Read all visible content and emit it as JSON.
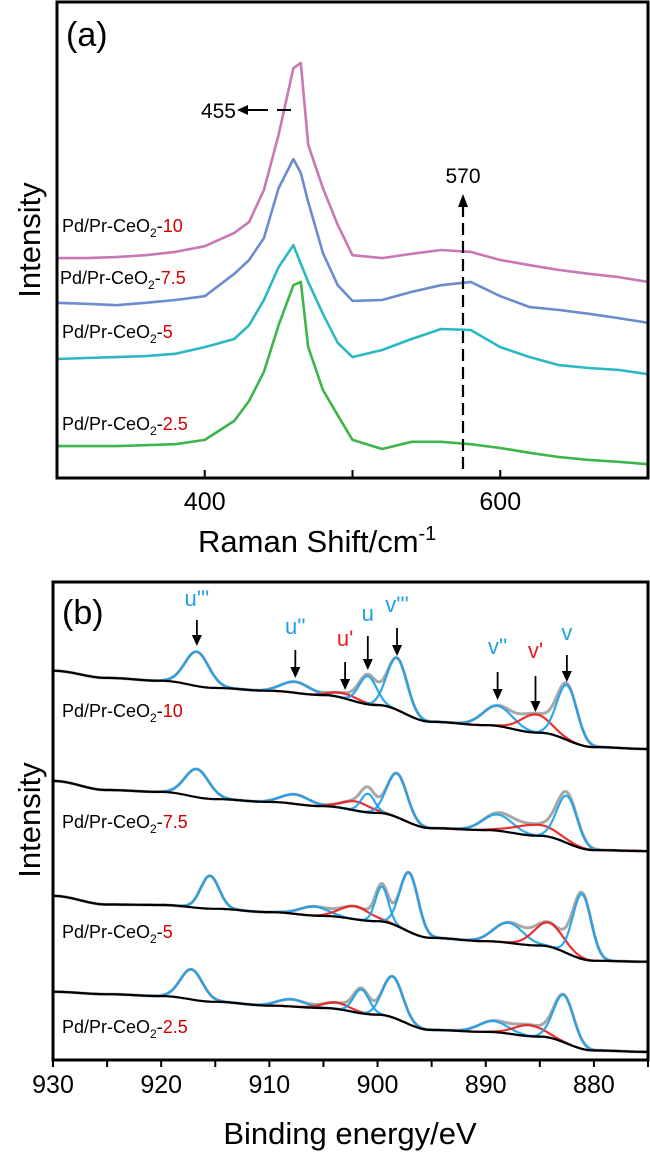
{
  "chart_data": [
    {
      "type": "line",
      "panel_label": "(a)",
      "xlabel": "Raman Shift/cm",
      "xlabel_superscript": "-1",
      "ylabel": "Intensity",
      "xlim": [
        300,
        700
      ],
      "xticks": [
        400,
        500,
        600
      ],
      "xtick_labels": [
        "400",
        "",
        "600"
      ],
      "grid": false,
      "x": [
        300,
        320,
        340,
        360,
        380,
        400,
        420,
        430,
        440,
        450,
        460,
        465,
        470,
        480,
        490,
        500,
        520,
        540,
        560,
        580,
        600,
        620,
        640,
        660,
        680,
        700
      ],
      "series": [
        {
          "name": "Pd/Pr-CeO2-10",
          "label_prefix": "Pd/Pr-CeO",
          "label_sub": "2",
          "label_dash": "-",
          "label_suffix": "10",
          "color": "#c878b4",
          "values": [
            46.2,
            46.2,
            46.4,
            46.8,
            47.5,
            48.7,
            51.5,
            53.8,
            60.5,
            72.1,
            86.1,
            87.2,
            70.0,
            60.9,
            53.2,
            46.8,
            46.2,
            47.1,
            47.9,
            47.5,
            45.8,
            44.7,
            43.7,
            42.9,
            42.2,
            41.2
          ]
        },
        {
          "name": "Pd/Pr-CeO2-7.5",
          "label_prefix": "Pd/Pr-CeO",
          "label_sub": "2",
          "label_dash": "-",
          "label_suffix": "7.5",
          "color": "#6c8ccb",
          "values": [
            36.8,
            36.6,
            36.3,
            36.8,
            37.4,
            38.2,
            42.9,
            45.8,
            50.4,
            60.9,
            67.0,
            64.1,
            58.0,
            47.3,
            40.5,
            37.2,
            37.4,
            39.1,
            40.5,
            41.2,
            38.2,
            35.9,
            35.3,
            34.5,
            33.6,
            32.6
          ]
        },
        {
          "name": "Pd/Pr-CeO2-5",
          "label_prefix": "Pd/Pr-CeO",
          "label_sub": "2",
          "label_dash": "-",
          "label_suffix": "5",
          "color": "#2cb8c2",
          "values": [
            25.0,
            25.2,
            25.4,
            25.6,
            26.1,
            27.5,
            29.2,
            32.1,
            37.4,
            44.3,
            48.9,
            45.0,
            41.2,
            34.5,
            28.4,
            25.4,
            26.9,
            29.2,
            31.3,
            31.1,
            27.5,
            25.4,
            23.7,
            23.1,
            22.7,
            21.8
          ]
        },
        {
          "name": "Pd/Pr-CeO2-2.5",
          "label_prefix": "Pd/Pr-CeO",
          "label_sub": "2",
          "label_dash": "-",
          "label_suffix": "2.5",
          "color": "#3db54a",
          "values": [
            6.7,
            6.7,
            6.7,
            6.9,
            7.1,
            8.0,
            12.0,
            16.2,
            22.3,
            32.1,
            40.5,
            41.2,
            27.5,
            18.5,
            13.2,
            8.0,
            6.1,
            7.6,
            7.6,
            7.1,
            6.3,
            5.3,
            4.4,
            3.8,
            3.4,
            2.9
          ]
        }
      ],
      "annotations": [
        {
          "text": "455",
          "x": 455,
          "arrow": "left"
        },
        {
          "text": "570",
          "x": 570,
          "arrow": "up",
          "line": "dashed"
        }
      ]
    },
    {
      "type": "line",
      "panel_label": "(b)",
      "xlabel": "Binding energy/eV",
      "ylabel": "Intensity",
      "xlim": [
        930,
        875
      ],
      "x_reversed": true,
      "xticks": [
        930,
        920,
        910,
        900,
        890,
        880
      ],
      "xtick_labels": [
        "930",
        "920",
        "910",
        "900",
        "890",
        "880"
      ],
      "grid": false,
      "colors": {
        "u_v_component": "#1e9fe8",
        "u_v_prime_component": "#e8201e",
        "envelope": "#a8a8a8",
        "background": "#000000"
      },
      "background_x": [
        930,
        925,
        920,
        915,
        910,
        905,
        900,
        895,
        890,
        885,
        880,
        875
      ],
      "peak_labels": [
        {
          "text": "u'''",
          "position": 916.7,
          "color": "#1e9fe8"
        },
        {
          "text": "u''",
          "position": 907.6,
          "color": "#1e9fe8"
        },
        {
          "text": "u'",
          "position": 903.0,
          "color": "#e8201e"
        },
        {
          "text": "u",
          "position": 900.9,
          "color": "#1e9fe8"
        },
        {
          "text": "v'''",
          "position": 898.2,
          "color": "#1e9fe8"
        },
        {
          "text": "v''",
          "position": 888.9,
          "color": "#1e9fe8"
        },
        {
          "text": "v'",
          "position": 885.4,
          "color": "#e8201e"
        },
        {
          "text": "v",
          "position": 882.5,
          "color": "#1e9fe8"
        }
      ],
      "spectra": [
        {
          "name": "Pd/Pr-CeO2-10",
          "label_prefix": "Pd/Pr-CeO",
          "label_sub": "2",
          "label_dash": "-",
          "label_suffix": "10",
          "background": [
            81.6,
            80.1,
            79.5,
            78.0,
            77.4,
            76.5,
            74.4,
            70.9,
            70.2,
            68.6,
            65.6,
            65.2
          ],
          "components": [
            {
              "label": "u'''",
              "position": 916.7,
              "height": 7.2,
              "fwhm": 2.6,
              "color": "#1e9fe8"
            },
            {
              "label": "u''",
              "position": 907.6,
              "height": 2.3,
              "fwhm": 3.0,
              "color": "#1e9fe8"
            },
            {
              "label": "u'",
              "position": 903.0,
              "height": 1.0,
              "fwhm": 3.0,
              "color": "#e8201e"
            },
            {
              "label": "u",
              "position": 900.9,
              "height": 5.9,
              "fwhm": 1.9,
              "color": "#1e9fe8"
            },
            {
              "label": "v'''",
              "position": 898.2,
              "height": 10.9,
              "fwhm": 2.2,
              "color": "#1e9fe8"
            },
            {
              "label": "v''",
              "position": 888.9,
              "height": 4.2,
              "fwhm": 3.2,
              "color": "#1e9fe8"
            },
            {
              "label": "v'",
              "position": 885.4,
              "height": 3.8,
              "fwhm": 3.2,
              "color": "#e8201e"
            },
            {
              "label": "v",
              "position": 882.5,
              "height": 11.5,
              "fwhm": 2.2,
              "color": "#1e9fe8"
            }
          ]
        },
        {
          "name": "Pd/Pr-CeO2-7.5",
          "label_prefix": "Pd/Pr-CeO",
          "label_sub": "2",
          "label_dash": "-",
          "label_suffix": "7.5",
          "background": [
            58.5,
            56.6,
            56.2,
            54.7,
            54.1,
            53.2,
            51.8,
            48.6,
            48.2,
            47.0,
            44.0,
            43.8
          ],
          "components": [
            {
              "label": "u'''",
              "position": 916.7,
              "height": 5.9,
              "fwhm": 2.6,
              "color": "#1e9fe8"
            },
            {
              "label": "u''",
              "position": 907.6,
              "height": 2.0,
              "fwhm": 3.0,
              "color": "#1e9fe8"
            },
            {
              "label": "u'",
              "position": 902.0,
              "height": 1.9,
              "fwhm": 3.0,
              "color": "#e8201e"
            },
            {
              "label": "u",
              "position": 900.9,
              "height": 3.9,
              "fwhm": 1.5,
              "color": "#1e9fe8"
            },
            {
              "label": "v'''",
              "position": 898.2,
              "height": 9.2,
              "fwhm": 2.2,
              "color": "#1e9fe8"
            },
            {
              "label": "v''",
              "position": 888.9,
              "height": 3.4,
              "fwhm": 3.2,
              "color": "#1e9fe8"
            },
            {
              "label": "v'",
              "position": 885.3,
              "height": 2.3,
              "fwhm": 4.5,
              "color": "#e8201e"
            },
            {
              "label": "v",
              "position": 882.5,
              "height": 9.9,
              "fwhm": 2.2,
              "color": "#1e9fe8"
            }
          ]
        },
        {
          "name": "Pd/Pr-CeO2-5",
          "label_prefix": "Pd/Pr-CeO",
          "label_sub": "2",
          "label_dash": "-",
          "label_suffix": "5",
          "background": [
            34.4,
            32.6,
            32.5,
            31.7,
            31.0,
            30.2,
            29.1,
            25.6,
            24.9,
            24.0,
            20.8,
            20.6
          ],
          "components": [
            {
              "label": "u'''",
              "position": 915.5,
              "height": 6.9,
              "fwhm": 2.0,
              "color": "#1e9fe8"
            },
            {
              "label": "u''",
              "position": 905.9,
              "height": 1.9,
              "fwhm": 3.0,
              "color": "#1e9fe8"
            },
            {
              "label": "u'",
              "position": 902.1,
              "height": 2.7,
              "fwhm": 3.2,
              "color": "#e8201e"
            },
            {
              "label": "u",
              "position": 899.6,
              "height": 7.3,
              "fwhm": 1.4,
              "color": "#1e9fe8"
            },
            {
              "label": "v'''",
              "position": 897.1,
              "height": 12.4,
              "fwhm": 2.0,
              "color": "#1e9fe8"
            },
            {
              "label": "v''",
              "position": 887.9,
              "height": 4.2,
              "fwhm": 3.2,
              "color": "#1e9fe8"
            },
            {
              "label": "v'",
              "position": 884.2,
              "height": 5.0,
              "fwhm": 3.2,
              "color": "#e8201e"
            },
            {
              "label": "v",
              "position": 881.1,
              "height": 13.6,
              "fwhm": 2.0,
              "color": "#1e9fe8"
            }
          ]
        },
        {
          "name": "Pd/Pr-CeO2-2.5",
          "label_prefix": "Pd/Pr-CeO",
          "label_sub": "2",
          "label_dash": "-",
          "label_suffix": "2.5",
          "background": [
            14.3,
            13.8,
            13.4,
            12.2,
            11.4,
            10.9,
            9.5,
            6.3,
            5.9,
            4.9,
            2.0,
            1.7
          ],
          "components": [
            {
              "label": "u'''",
              "position": 917.2,
              "height": 6.3,
              "fwhm": 2.4,
              "color": "#1e9fe8"
            },
            {
              "label": "u''",
              "position": 908.0,
              "height": 1.5,
              "fwhm": 3.0,
              "color": "#1e9fe8"
            },
            {
              "label": "u'",
              "position": 903.8,
              "height": 1.3,
              "fwhm": 3.0,
              "color": "#e8201e"
            },
            {
              "label": "u",
              "position": 901.5,
              "height": 5.0,
              "fwhm": 1.7,
              "color": "#1e9fe8"
            },
            {
              "label": "v'''",
              "position": 898.6,
              "height": 8.6,
              "fwhm": 2.2,
              "color": "#1e9fe8"
            },
            {
              "label": "v''",
              "position": 889.3,
              "height": 2.3,
              "fwhm": 3.2,
              "color": "#1e9fe8"
            },
            {
              "label": "v'",
              "position": 886.0,
              "height": 2.3,
              "fwhm": 3.2,
              "color": "#e8201e"
            },
            {
              "label": "v",
              "position": 882.8,
              "height": 9.9,
              "fwhm": 2.2,
              "color": "#1e9fe8"
            }
          ]
        }
      ]
    }
  ]
}
